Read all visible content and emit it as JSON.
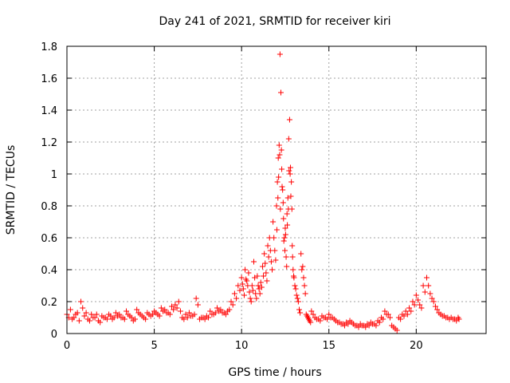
{
  "chart_data": {
    "type": "scatter",
    "title": "Day 241 of 2021, SRMTID for receiver kiri",
    "xlabel": "GPS time / hours",
    "ylabel": "SRMTID / TECUs",
    "xlim": [
      0,
      24
    ],
    "ylim": [
      0,
      1.8
    ],
    "x_ticks": [
      "0",
      "5",
      "10",
      "15",
      "20"
    ],
    "x_tick_values": [
      0,
      5,
      10,
      15,
      20
    ],
    "y_ticks": [
      "0",
      "0.2",
      "0.4",
      "0.6",
      "0.8",
      "1",
      "1.2",
      "1.4",
      "1.6",
      "1.8"
    ],
    "y_tick_values": [
      0,
      0.2,
      0.4,
      0.6,
      0.8,
      1.0,
      1.2,
      1.4,
      1.6,
      1.8
    ],
    "grid": true,
    "marker": "+",
    "marker_color": "#ff0000",
    "series": [
      {
        "name": "SRMTID",
        "x": [
          0.0,
          0.2,
          0.4,
          0.6,
          0.8,
          1.0,
          1.2,
          1.4,
          1.6,
          1.8,
          2.0,
          2.2,
          2.4,
          2.6,
          2.8,
          3.0,
          3.2,
          3.4,
          3.6,
          3.8,
          4.0,
          4.2,
          4.4,
          4.6,
          4.8,
          5.0,
          5.2,
          5.4,
          5.6,
          5.8,
          6.0,
          6.2,
          6.4,
          6.6,
          6.8,
          7.0,
          7.2,
          7.4,
          7.6,
          7.8,
          8.0,
          8.2,
          8.4,
          8.6,
          8.8,
          9.0,
          9.2,
          9.4,
          9.6,
          9.8,
          10.0,
          10.1,
          10.2,
          10.3,
          10.4,
          10.5,
          10.6,
          10.7,
          10.8,
          10.9,
          11.0,
          11.1,
          11.2,
          11.3,
          11.4,
          11.5,
          11.6,
          11.7,
          11.8,
          11.9,
          12.0,
          12.05,
          12.1,
          12.15,
          12.2,
          12.25,
          12.3,
          12.35,
          12.4,
          12.45,
          12.5,
          12.55,
          12.6,
          12.65,
          12.7,
          12.75,
          12.8,
          12.85,
          12.9,
          12.95,
          13.0,
          13.1,
          13.2,
          13.3,
          13.4,
          13.5,
          13.6,
          13.7,
          13.8,
          13.9,
          14.0,
          14.2,
          14.4,
          14.6,
          14.8,
          15.0,
          15.2,
          15.4,
          15.6,
          15.8,
          16.0,
          16.2,
          16.4,
          16.6,
          16.8,
          17.0,
          17.2,
          17.4,
          17.6,
          17.8,
          18.0,
          18.2,
          18.4,
          18.6,
          18.8,
          19.0,
          19.2,
          19.4,
          19.6,
          19.8,
          20.0,
          20.2,
          20.4,
          20.6,
          20.8,
          21.0,
          21.2,
          21.4,
          21.6,
          21.8,
          22.0,
          22.2,
          22.4,
          0.1,
          0.3,
          0.5,
          0.7,
          0.9,
          1.1,
          1.3,
          1.5,
          1.7,
          1.9,
          2.1,
          2.3,
          2.5,
          2.7,
          2.9,
          3.1,
          3.3,
          3.5,
          3.7,
          3.9,
          4.1,
          4.3,
          4.5,
          4.7,
          4.9,
          5.1,
          5.3,
          5.5,
          5.7,
          5.9,
          6.1,
          6.3,
          6.5,
          6.7,
          6.9,
          7.1,
          7.3,
          7.5,
          7.7,
          7.9,
          8.1,
          8.3,
          8.5,
          8.7,
          8.9,
          9.1,
          9.3,
          9.5,
          9.7,
          9.9,
          10.05,
          10.15,
          10.25,
          10.35,
          10.45,
          10.55,
          10.65,
          10.75,
          10.85,
          10.95,
          11.05,
          11.15,
          11.25,
          11.35,
          11.45,
          11.55,
          11.65,
          11.75,
          11.85,
          11.95,
          12.02,
          12.08,
          12.12,
          12.18,
          12.22,
          12.28,
          12.32,
          12.38,
          12.42,
          12.48,
          12.52,
          12.58,
          12.62,
          12.68,
          12.72,
          12.78,
          12.82,
          12.88,
          12.92,
          12.98,
          13.05,
          13.15,
          13.25,
          13.35,
          13.45,
          13.55,
          13.65,
          13.75,
          13.85,
          13.95,
          14.1,
          14.3,
          14.5,
          14.7,
          14.9,
          15.1,
          15.3,
          15.5,
          15.7,
          15.9,
          16.1,
          16.3,
          16.5,
          16.7,
          16.9,
          17.1,
          17.3,
          17.5,
          17.7,
          17.9,
          18.1,
          18.3,
          18.5,
          18.7,
          18.9,
          19.1,
          19.3,
          19.5,
          19.7,
          19.9,
          20.1,
          20.3,
          20.5,
          20.7,
          20.9,
          21.1,
          21.3,
          21.5,
          21.7,
          21.9,
          22.1,
          22.3,
          22.45
        ],
        "y": [
          0.12,
          0.15,
          0.1,
          0.13,
          0.2,
          0.11,
          0.09,
          0.12,
          0.1,
          0.08,
          0.11,
          0.1,
          0.12,
          0.09,
          0.13,
          0.12,
          0.1,
          0.14,
          0.11,
          0.08,
          0.15,
          0.12,
          0.1,
          0.13,
          0.11,
          0.14,
          0.12,
          0.16,
          0.15,
          0.13,
          0.17,
          0.18,
          0.2,
          0.1,
          0.12,
          0.13,
          0.11,
          0.22,
          0.09,
          0.1,
          0.11,
          0.14,
          0.12,
          0.16,
          0.15,
          0.13,
          0.14,
          0.2,
          0.25,
          0.3,
          0.35,
          0.28,
          0.4,
          0.33,
          0.38,
          0.22,
          0.3,
          0.45,
          0.25,
          0.36,
          0.28,
          0.32,
          0.42,
          0.5,
          0.38,
          0.55,
          0.6,
          0.45,
          0.7,
          0.52,
          0.8,
          0.95,
          1.1,
          1.18,
          1.75,
          1.51,
          1.03,
          0.9,
          0.72,
          0.6,
          0.66,
          0.48,
          0.75,
          0.85,
          1.22,
          1.34,
          1.04,
          0.95,
          0.55,
          0.4,
          0.35,
          0.28,
          0.22,
          0.15,
          0.5,
          0.42,
          0.3,
          0.12,
          0.1,
          0.08,
          0.14,
          0.1,
          0.09,
          0.11,
          0.1,
          0.12,
          0.1,
          0.08,
          0.07,
          0.06,
          0.07,
          0.08,
          0.06,
          0.05,
          0.06,
          0.05,
          0.06,
          0.07,
          0.06,
          0.08,
          0.1,
          0.14,
          0.12,
          0.05,
          0.03,
          0.1,
          0.12,
          0.14,
          0.16,
          0.2,
          0.24,
          0.18,
          0.3,
          0.35,
          0.25,
          0.2,
          0.15,
          0.12,
          0.11,
          0.1,
          0.1,
          0.09,
          0.1,
          0.1,
          0.09,
          0.12,
          0.08,
          0.16,
          0.13,
          0.08,
          0.1,
          0.12,
          0.07,
          0.1,
          0.09,
          0.11,
          0.1,
          0.11,
          0.1,
          0.09,
          0.12,
          0.1,
          0.09,
          0.13,
          0.11,
          0.09,
          0.12,
          0.12,
          0.13,
          0.11,
          0.14,
          0.13,
          0.12,
          0.15,
          0.16,
          0.14,
          0.09,
          0.1,
          0.11,
          0.12,
          0.18,
          0.1,
          0.09,
          0.1,
          0.12,
          0.13,
          0.14,
          0.13,
          0.12,
          0.15,
          0.18,
          0.22,
          0.27,
          0.31,
          0.24,
          0.34,
          0.3,
          0.26,
          0.2,
          0.27,
          0.35,
          0.22,
          0.3,
          0.25,
          0.29,
          0.36,
          0.44,
          0.33,
          0.48,
          0.52,
          0.4,
          0.6,
          0.46,
          0.65,
          0.85,
          0.98,
          1.12,
          0.78,
          1.15,
          0.92,
          0.82,
          0.58,
          0.52,
          0.62,
          0.42,
          0.68,
          0.78,
          1.02,
          1.0,
          0.86,
          0.78,
          0.48,
          0.36,
          0.3,
          0.24,
          0.2,
          0.13,
          0.4,
          0.35,
          0.25,
          0.11,
          0.09,
          0.07,
          0.12,
          0.09,
          0.08,
          0.1,
          0.09,
          0.1,
          0.09,
          0.07,
          0.06,
          0.05,
          0.06,
          0.07,
          0.05,
          0.04,
          0.05,
          0.04,
          0.05,
          0.06,
          0.05,
          0.07,
          0.09,
          0.12,
          0.1,
          0.04,
          0.02,
          0.09,
          0.11,
          0.12,
          0.14,
          0.18,
          0.21,
          0.16,
          0.26,
          0.3,
          0.22,
          0.17,
          0.13,
          0.11,
          0.1,
          0.09,
          0.09,
          0.08,
          0.09
        ]
      }
    ]
  }
}
